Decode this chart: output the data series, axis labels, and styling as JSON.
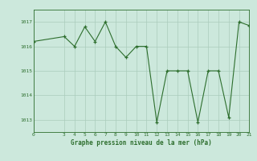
{
  "x": [
    0,
    3,
    4,
    5,
    6,
    7,
    8,
    9,
    10,
    11,
    12,
    13,
    14,
    15,
    16,
    17,
    18,
    19,
    20,
    21
  ],
  "y": [
    1016.2,
    1016.4,
    1016.0,
    1016.8,
    1016.2,
    1017.0,
    1016.0,
    1015.55,
    1016.0,
    1016.0,
    1012.9,
    1015.0,
    1015.0,
    1015.0,
    1012.9,
    1015.0,
    1015.0,
    1013.1,
    1017.0,
    1016.85
  ],
  "xlim": [
    0,
    21
  ],
  "ylim": [
    1012.5,
    1017.5
  ],
  "yticks": [
    1013,
    1014,
    1015,
    1016,
    1017
  ],
  "xticks": [
    0,
    3,
    4,
    5,
    6,
    7,
    8,
    9,
    10,
    11,
    12,
    13,
    14,
    15,
    16,
    17,
    18,
    19,
    20,
    21
  ],
  "xlabel": "Graphe pression niveau de la mer (hPa)",
  "line_color": "#2d6e2d",
  "marker_color": "#2d6e2d",
  "bg_color": "#cce8dc",
  "grid_color": "#aaccbc",
  "text_color": "#2d6e2d"
}
